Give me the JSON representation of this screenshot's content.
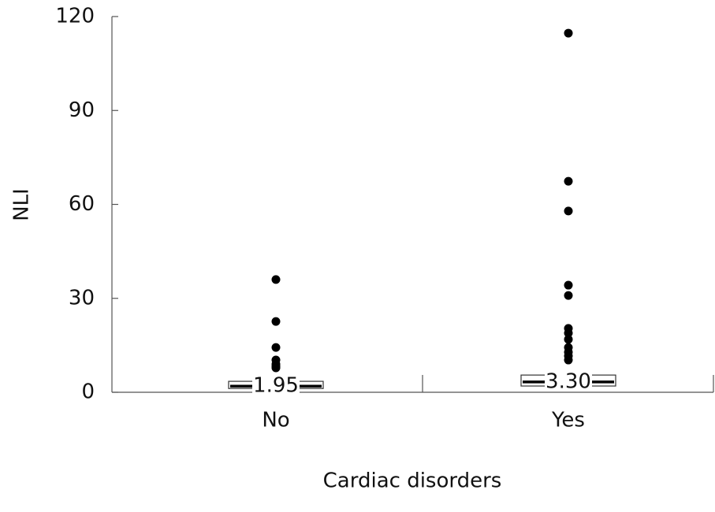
{
  "chart_data": {
    "type": "box",
    "x_label": "Cardiac disorders",
    "y_label": "NLI",
    "categories": [
      "No",
      "Yes"
    ],
    "q1": [
      1.2,
      2.0
    ],
    "medians": [
      1.95,
      3.3
    ],
    "q3": [
      3.5,
      5.5
    ],
    "value_labels": [
      "1.95",
      "3.30"
    ],
    "outliers": [
      [
        36,
        22.6,
        14.3,
        10.3,
        9,
        8.3,
        7.8
      ],
      [
        114.7,
        67.4,
        57.9,
        34.2,
        30.9,
        20.4,
        18.9,
        16.9,
        14.3,
        12.8,
        11.6,
        10.3
      ]
    ],
    "ylim": [
      0,
      120
    ],
    "yticks": [
      0,
      30,
      60,
      90,
      120
    ],
    "color": "#000000"
  }
}
